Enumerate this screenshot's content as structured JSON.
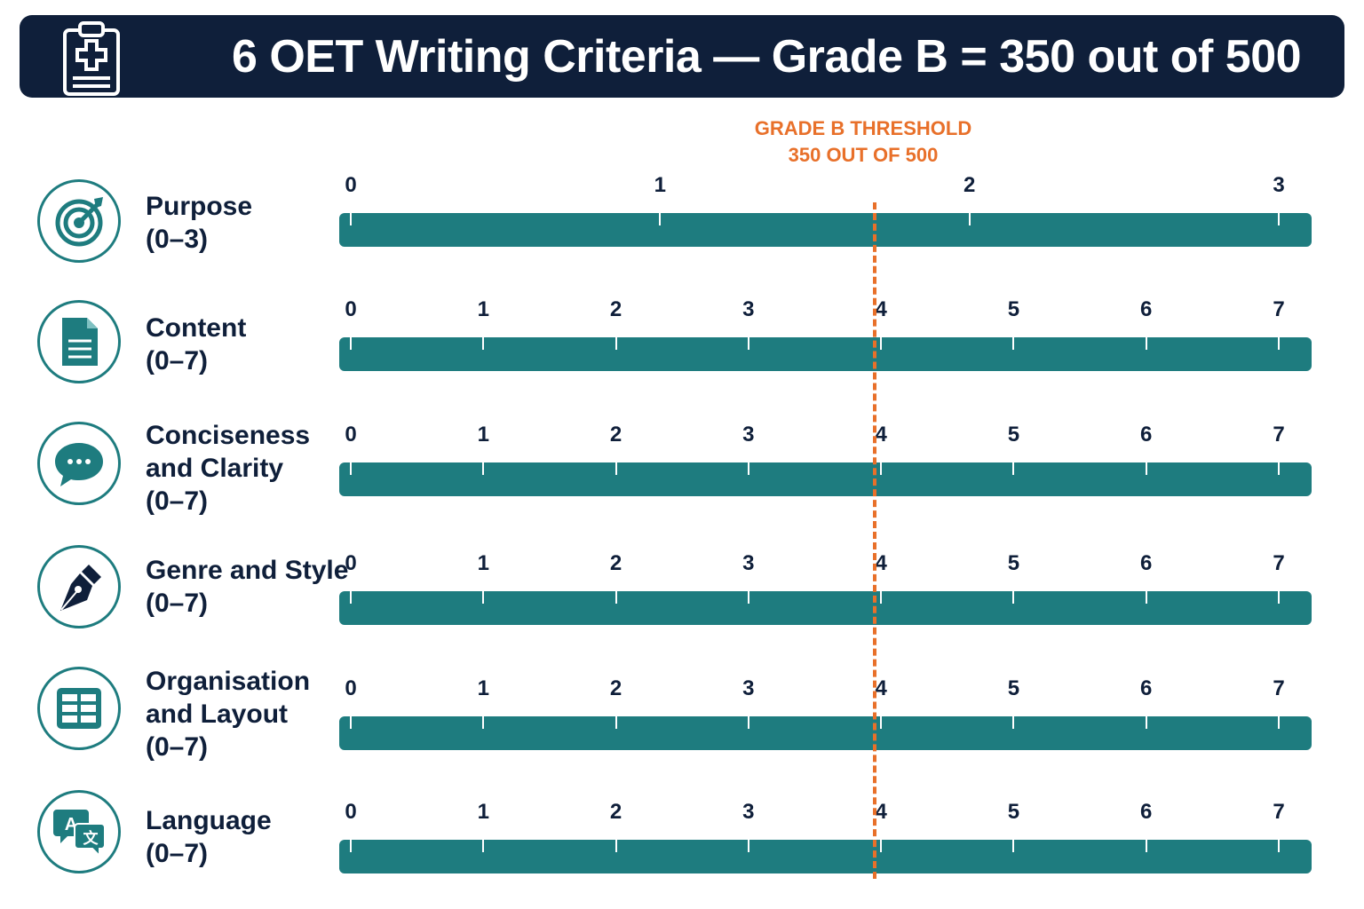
{
  "title": "6 OET Writing Criteria — Grade B = 350 out of 500",
  "threshold": {
    "line1": "GRADE B THRESHOLD",
    "line2": "350 OUT OF 500",
    "color": "#e8702a"
  },
  "colors": {
    "header_bg": "#0f1f3a",
    "bar": "#1e7c7f",
    "threshold": "#e8702a"
  },
  "criteria": [
    {
      "name": "Purpose",
      "range": "(0–3)",
      "icon": "target-icon",
      "ticks": [
        "0",
        "1",
        "2",
        "3"
      ]
    },
    {
      "name": "Content",
      "range": "(0–7)",
      "icon": "document-icon",
      "ticks": [
        "0",
        "1",
        "2",
        "3",
        "4",
        "5",
        "6",
        "7"
      ]
    },
    {
      "name": "Conciseness and Clarity",
      "range": "(0–7)",
      "icon": "speech-bubble-icon",
      "ticks": [
        "0",
        "1",
        "2",
        "3",
        "4",
        "5",
        "6",
        "7"
      ]
    },
    {
      "name": "Genre and Style",
      "range": "(0–7)",
      "icon": "pen-nib-icon",
      "ticks": [
        "0",
        "1",
        "2",
        "3",
        "4",
        "5",
        "6",
        "7"
      ]
    },
    {
      "name": "Organisation and Layout",
      "range": "(0–7)",
      "icon": "layout-grid-icon",
      "ticks": [
        "0",
        "1",
        "2",
        "3",
        "4",
        "5",
        "6",
        "7"
      ]
    },
    {
      "name": "Language",
      "range": "(0–7)",
      "icon": "translate-icon",
      "ticks": [
        "0",
        "1",
        "2",
        "3",
        "4",
        "5",
        "6",
        "7"
      ]
    }
  ]
}
